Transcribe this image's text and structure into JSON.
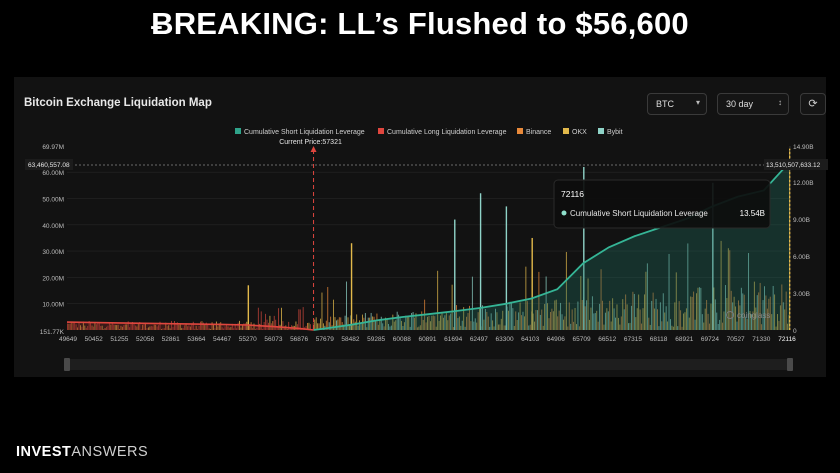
{
  "headline": "ɃREAKING:  LL’s Flushed to $56,600",
  "panel": {
    "title": "Bitcoin Exchange Liquidation Map",
    "coin_select": "BTC",
    "range_select": "30 day",
    "refresh_icon": "refresh-icon"
  },
  "footer": {
    "brand_bold": "INVEST",
    "brand_light": "ANSWERS"
  },
  "chart_data": {
    "type": "bar",
    "legend": [
      {
        "name": "Cumulative Short Liquidation Leverage",
        "color": "#2fa38a"
      },
      {
        "name": "Cumulative Long Liquidation Leverage",
        "color": "#e0463e"
      },
      {
        "name": "Binance",
        "color": "#e8893a"
      },
      {
        "name": "OKX",
        "color": "#e2b94b"
      },
      {
        "name": "Bybit",
        "color": "#8fd3c8"
      }
    ],
    "current_price_label": "Current Price:57321",
    "current_price": 57321,
    "x_ticks": [
      "49649",
      "50452",
      "51255",
      "52058",
      "52861",
      "53664",
      "54467",
      "55270",
      "56073",
      "56876",
      "57679",
      "58482",
      "59285",
      "60088",
      "60891",
      "61694",
      "62497",
      "63300",
      "64103",
      "64906",
      "65709",
      "66512",
      "67315",
      "68118",
      "68921",
      "69724",
      "70527",
      "71330",
      "72116"
    ],
    "y_left_ticks": [
      "151.77K",
      "10.00M",
      "20.00M",
      "30.00M",
      "40.00M",
      "50.00M",
      "60.00M",
      "69.97M"
    ],
    "y_left_range": [
      0,
      69970000
    ],
    "y_right_ticks": [
      "0",
      "3.00B",
      "6.00B",
      "9.00B",
      "12.00B",
      "14.90B"
    ],
    "y_right_range": [
      0,
      14900000000
    ],
    "left_marker_label": "63,460,557.08",
    "right_marker_label": "13,510,507,633.12",
    "tooltip": {
      "title": "72116",
      "series": "Cumulative Short Liquidation Leverage",
      "value": "13.54B"
    },
    "watermark": "coinglass",
    "short_cumulative_B": [
      [
        57321,
        0
      ],
      [
        57679,
        0.12
      ],
      [
        58482,
        0.42
      ],
      [
        59285,
        0.78
      ],
      [
        60088,
        1.05
      ],
      [
        60891,
        1.28
      ],
      [
        61694,
        1.52
      ],
      [
        62497,
        1.78
      ],
      [
        63300,
        2.12
      ],
      [
        64103,
        2.55
      ],
      [
        64906,
        3.3
      ],
      [
        65709,
        5.4
      ],
      [
        66512,
        6.7
      ],
      [
        67315,
        7.6
      ],
      [
        68118,
        8.3
      ],
      [
        68921,
        9.0
      ],
      [
        69724,
        10.0
      ],
      [
        70527,
        10.8
      ],
      [
        71330,
        11.3
      ],
      [
        72116,
        13.54
      ]
    ],
    "long_cumulative_M": [
      [
        49649,
        3.0
      ],
      [
        51255,
        2.7
      ],
      [
        52861,
        2.4
      ],
      [
        54467,
        2.1
      ],
      [
        55270,
        1.9
      ],
      [
        56073,
        1.3
      ],
      [
        56876,
        0.6
      ],
      [
        57321,
        0
      ]
    ],
    "peak_bars": [
      {
        "x": 55270,
        "y_M": 17,
        "exchange": "OKX"
      },
      {
        "x": 58482,
        "y_M": 33,
        "exchange": "OKX"
      },
      {
        "x": 61694,
        "y_M": 42,
        "exchange": "Bybit"
      },
      {
        "x": 62497,
        "y_M": 52,
        "exchange": "Bybit"
      },
      {
        "x": 63300,
        "y_M": 47,
        "exchange": "Bybit"
      },
      {
        "x": 64103,
        "y_M": 35,
        "exchange": "OKX"
      },
      {
        "x": 65709,
        "y_M": 62,
        "exchange": "Bybit"
      },
      {
        "x": 69724,
        "y_M": 56,
        "exchange": "Bybit"
      },
      {
        "x": 72116,
        "y_M": 69,
        "exchange": "OKX"
      }
    ]
  }
}
